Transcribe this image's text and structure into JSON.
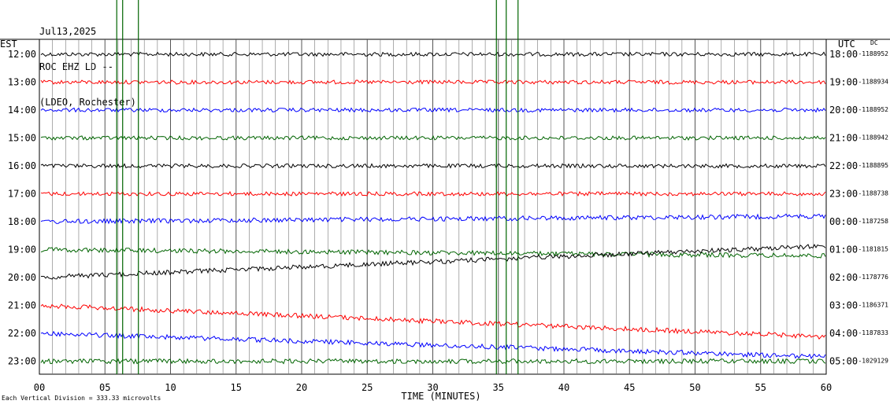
{
  "header": {
    "date": "Jul13,2025",
    "station": "ROC EHZ LD --",
    "network": "(LDEO, Rochester)"
  },
  "chart_data": {
    "type": "line",
    "left_axis_title": "EST",
    "right_axis_title": "UTC",
    "dc_title": "DC",
    "xlabel": "TIME (MINUTES)",
    "xlim": [
      0,
      60
    ],
    "x_ticks": [
      "00",
      "05",
      "10",
      "15",
      "20",
      "25",
      "30",
      "35",
      "40",
      "45",
      "50",
      "55",
      "60"
    ],
    "footer_note": "Each Vertical Division = 333.33 microvolts",
    "trace_colors": [
      "#000000",
      "#ff0000",
      "#0000ff",
      "#006400"
    ],
    "rows": [
      {
        "est": "12:00",
        "utc": "18:00",
        "dc": "-1188952"
      },
      {
        "est": "13:00",
        "utc": "19:00",
        "dc": "-1188934"
      },
      {
        "est": "14:00",
        "utc": "20:00",
        "dc": "-1188952"
      },
      {
        "est": "15:00",
        "utc": "21:00",
        "dc": "-1188942"
      },
      {
        "est": "16:00",
        "utc": "22:00",
        "dc": "-1188895"
      },
      {
        "est": "17:00",
        "utc": "23:00",
        "dc": "-1188738"
      },
      {
        "est": "18:00",
        "utc": "00:00",
        "dc": "-1187258"
      },
      {
        "est": "19:00",
        "utc": "01:00",
        "dc": "-1181815"
      },
      {
        "est": "20:00",
        "utc": "02:00",
        "dc": "-1178776"
      },
      {
        "est": "21:00",
        "utc": "03:00",
        "dc": "-1186371"
      },
      {
        "est": "22:00",
        "utc": "04:00",
        "dc": "-1187833"
      },
      {
        "est": "23:00",
        "utc": "05:00",
        "dc": "-1029129"
      }
    ]
  }
}
